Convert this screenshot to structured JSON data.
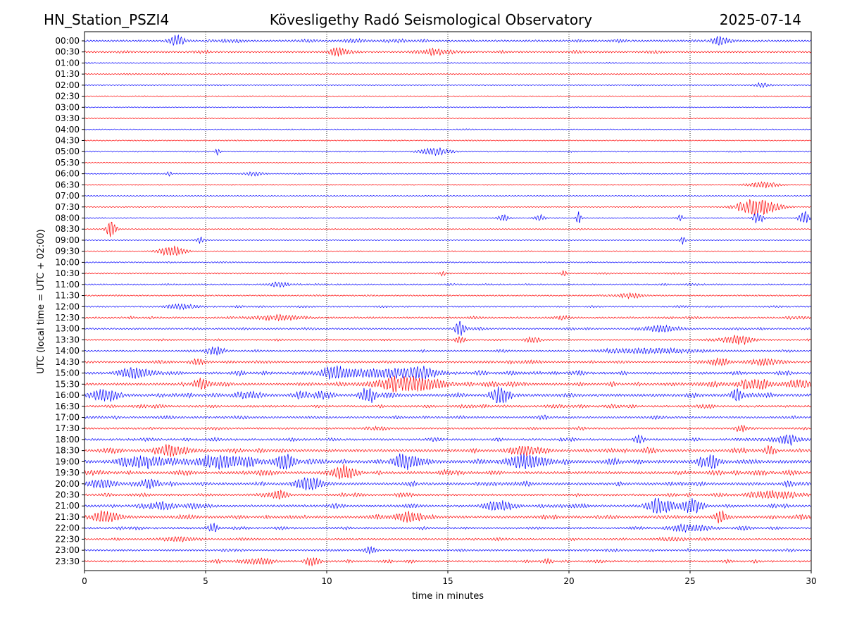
{
  "header": {
    "station": "HN_Station_PSZI4",
    "observatory": "Kövesligethy Radó Seismological Observatory",
    "date": "2025-07-14"
  },
  "chart_data": {
    "type": "line",
    "title": "Kövesligethy Radó Seismological Observatory",
    "xlabel": "time in minutes",
    "ylabel": "UTC (local time = UTC + 02:00)",
    "xlim": [
      0,
      30
    ],
    "xticks": [
      "0",
      "5",
      "10",
      "15",
      "20",
      "25",
      "30"
    ],
    "vertical_gridlines_minutes": [
      5,
      10,
      15,
      20,
      25
    ],
    "grid": "vertical dotted",
    "colors": {
      "even_row": "#0000ff",
      "odd_row": "#ff0000",
      "grid": "#000000"
    },
    "rows": [
      {
        "label": "00:00",
        "activity": 0.35,
        "events": [
          {
            "t": 3.8,
            "a": 0.9,
            "d": 0.3
          },
          {
            "t": 26.2,
            "a": 0.7,
            "d": 0.3
          }
        ]
      },
      {
        "label": "00:30",
        "activity": 0.3,
        "events": [
          {
            "t": 10.5,
            "a": 0.5,
            "d": 0.4
          },
          {
            "t": 14.5,
            "a": 0.4,
            "d": 0.8
          }
        ]
      },
      {
        "label": "01:00",
        "activity": 0.12,
        "events": []
      },
      {
        "label": "01:30",
        "activity": 0.1,
        "events": []
      },
      {
        "label": "02:00",
        "activity": 0.08,
        "events": [
          {
            "t": 28.0,
            "a": 0.4,
            "d": 0.3
          }
        ]
      },
      {
        "label": "02:30",
        "activity": 0.05,
        "events": []
      },
      {
        "label": "03:00",
        "activity": 0.05,
        "events": []
      },
      {
        "label": "03:30",
        "activity": 0.08,
        "events": []
      },
      {
        "label": "04:00",
        "activity": 0.08,
        "events": []
      },
      {
        "label": "04:30",
        "activity": 0.08,
        "events": []
      },
      {
        "label": "05:00",
        "activity": 0.1,
        "events": [
          {
            "t": 5.5,
            "a": 0.5,
            "d": 0.1
          },
          {
            "t": 14.5,
            "a": 0.6,
            "d": 0.6
          }
        ]
      },
      {
        "label": "05:30",
        "activity": 0.06,
        "events": []
      },
      {
        "label": "06:00",
        "activity": 0.08,
        "events": [
          {
            "t": 3.5,
            "a": 0.4,
            "d": 0.1
          },
          {
            "t": 7.0,
            "a": 0.3,
            "d": 0.4
          }
        ]
      },
      {
        "label": "06:30",
        "activity": 0.08,
        "events": [
          {
            "t": 28.0,
            "a": 0.5,
            "d": 0.6
          }
        ]
      },
      {
        "label": "07:00",
        "activity": 0.05,
        "events": []
      },
      {
        "label": "07:30",
        "activity": 0.08,
        "events": [
          {
            "t": 27.8,
            "a": 1.5,
            "d": 0.8
          }
        ]
      },
      {
        "label": "08:00",
        "activity": 0.08,
        "events": [
          {
            "t": 17.3,
            "a": 0.6,
            "d": 0.2
          },
          {
            "t": 18.8,
            "a": 0.5,
            "d": 0.2
          },
          {
            "t": 20.4,
            "a": 1.2,
            "d": 0.1
          },
          {
            "t": 24.6,
            "a": 0.7,
            "d": 0.1
          },
          {
            "t": 27.8,
            "a": 1.0,
            "d": 0.2
          },
          {
            "t": 29.7,
            "a": 1.2,
            "d": 0.2
          }
        ]
      },
      {
        "label": "08:30",
        "activity": 0.08,
        "events": [
          {
            "t": 1.1,
            "a": 1.5,
            "d": 0.2
          }
        ]
      },
      {
        "label": "09:00",
        "activity": 0.06,
        "events": [
          {
            "t": 4.8,
            "a": 0.5,
            "d": 0.2
          },
          {
            "t": 24.7,
            "a": 0.9,
            "d": 0.1
          }
        ]
      },
      {
        "label": "09:30",
        "activity": 0.08,
        "events": [
          {
            "t": 3.6,
            "a": 0.9,
            "d": 0.5
          }
        ]
      },
      {
        "label": "10:00",
        "activity": 0.12,
        "events": []
      },
      {
        "label": "10:30",
        "activity": 0.12,
        "events": [
          {
            "t": 14.8,
            "a": 0.5,
            "d": 0.1
          },
          {
            "t": 19.8,
            "a": 0.6,
            "d": 0.1
          }
        ]
      },
      {
        "label": "11:00",
        "activity": 0.2,
        "events": [
          {
            "t": 8.0,
            "a": 0.4,
            "d": 0.4
          }
        ]
      },
      {
        "label": "11:30",
        "activity": 0.15,
        "events": [
          {
            "t": 22.5,
            "a": 0.4,
            "d": 0.5
          }
        ]
      },
      {
        "label": "12:00",
        "activity": 0.2,
        "events": [
          {
            "t": 4.0,
            "a": 0.4,
            "d": 0.6
          }
        ]
      },
      {
        "label": "12:30",
        "activity": 0.3,
        "events": [
          {
            "t": 8.0,
            "a": 0.4,
            "d": 1.0
          }
        ]
      },
      {
        "label": "13:00",
        "activity": 0.25,
        "events": [
          {
            "t": 15.5,
            "a": 1.3,
            "d": 0.2
          },
          {
            "t": 23.8,
            "a": 0.5,
            "d": 0.8
          }
        ]
      },
      {
        "label": "13:30",
        "activity": 0.2,
        "events": [
          {
            "t": 15.5,
            "a": 0.6,
            "d": 0.2
          },
          {
            "t": 18.5,
            "a": 0.5,
            "d": 0.3
          },
          {
            "t": 27.0,
            "a": 0.8,
            "d": 0.6
          }
        ]
      },
      {
        "label": "14:00",
        "activity": 0.25,
        "events": [
          {
            "t": 5.4,
            "a": 0.6,
            "d": 0.4
          },
          {
            "t": 23.5,
            "a": 0.4,
            "d": 2.0
          }
        ]
      },
      {
        "label": "14:30",
        "activity": 0.35,
        "events": [
          {
            "t": 4.7,
            "a": 0.5,
            "d": 0.3
          },
          {
            "t": 26.2,
            "a": 0.6,
            "d": 0.4
          },
          {
            "t": 28.0,
            "a": 0.5,
            "d": 0.6
          }
        ]
      },
      {
        "label": "15:00",
        "activity": 0.5,
        "events": [
          {
            "t": 2.0,
            "a": 0.8,
            "d": 0.6
          },
          {
            "t": 10.3,
            "a": 1.2,
            "d": 0.4
          },
          {
            "t": 12.0,
            "a": 0.6,
            "d": 2.0
          },
          {
            "t": 14.0,
            "a": 0.8,
            "d": 0.6
          }
        ]
      },
      {
        "label": "15:30",
        "activity": 0.5,
        "events": [
          {
            "t": 4.8,
            "a": 0.9,
            "d": 0.3
          },
          {
            "t": 13.3,
            "a": 1.4,
            "d": 1.2
          },
          {
            "t": 27.5,
            "a": 0.8,
            "d": 0.6
          },
          {
            "t": 29.5,
            "a": 0.6,
            "d": 0.6
          }
        ]
      },
      {
        "label": "16:00",
        "activity": 0.6,
        "events": [
          {
            "t": 0.8,
            "a": 0.8,
            "d": 0.6
          },
          {
            "t": 11.7,
            "a": 1.4,
            "d": 0.3
          },
          {
            "t": 17.2,
            "a": 1.1,
            "d": 0.4
          },
          {
            "t": 26.9,
            "a": 1.2,
            "d": 0.2
          }
        ]
      },
      {
        "label": "16:30",
        "activity": 0.4,
        "events": []
      },
      {
        "label": "17:00",
        "activity": 0.35,
        "events": []
      },
      {
        "label": "17:30",
        "activity": 0.3,
        "events": [
          {
            "t": 27.1,
            "a": 0.5,
            "d": 0.2
          }
        ]
      },
      {
        "label": "18:00",
        "activity": 0.4,
        "events": [
          {
            "t": 22.9,
            "a": 0.6,
            "d": 0.2
          },
          {
            "t": 29.0,
            "a": 0.5,
            "d": 0.6
          }
        ]
      },
      {
        "label": "18:30",
        "activity": 0.55,
        "events": [
          {
            "t": 3.5,
            "a": 1.0,
            "d": 0.6
          },
          {
            "t": 18.3,
            "a": 0.8,
            "d": 0.4
          },
          {
            "t": 28.3,
            "a": 0.9,
            "d": 0.2
          }
        ]
      },
      {
        "label": "19:00",
        "activity": 0.7,
        "events": [
          {
            "t": 2.5,
            "a": 1.0,
            "d": 0.8
          },
          {
            "t": 6.0,
            "a": 0.8,
            "d": 1.2
          },
          {
            "t": 8.3,
            "a": 1.0,
            "d": 0.4
          },
          {
            "t": 13.2,
            "a": 1.0,
            "d": 0.4
          },
          {
            "t": 18.3,
            "a": 1.2,
            "d": 0.8
          },
          {
            "t": 25.9,
            "a": 1.0,
            "d": 0.3
          }
        ]
      },
      {
        "label": "19:30",
        "activity": 0.55,
        "events": [
          {
            "t": 10.7,
            "a": 1.1,
            "d": 0.4
          }
        ]
      },
      {
        "label": "20:00",
        "activity": 0.5,
        "events": [
          {
            "t": 0.7,
            "a": 0.7,
            "d": 0.6
          },
          {
            "t": 2.7,
            "a": 0.7,
            "d": 0.4
          },
          {
            "t": 9.3,
            "a": 1.0,
            "d": 0.6
          }
        ]
      },
      {
        "label": "20:30",
        "activity": 0.4,
        "events": [
          {
            "t": 8.1,
            "a": 0.7,
            "d": 0.3
          },
          {
            "t": 28.5,
            "a": 0.6,
            "d": 1.0
          }
        ]
      },
      {
        "label": "21:00",
        "activity": 0.5,
        "events": [
          {
            "t": 3.2,
            "a": 0.6,
            "d": 0.4
          },
          {
            "t": 17.2,
            "a": 0.7,
            "d": 0.6
          },
          {
            "t": 23.8,
            "a": 0.9,
            "d": 0.6
          },
          {
            "t": 25.1,
            "a": 1.1,
            "d": 0.4
          }
        ]
      },
      {
        "label": "21:30",
        "activity": 0.5,
        "events": [
          {
            "t": 1.0,
            "a": 0.7,
            "d": 0.6
          },
          {
            "t": 13.4,
            "a": 0.8,
            "d": 0.6
          },
          {
            "t": 26.3,
            "a": 0.8,
            "d": 0.3
          }
        ]
      },
      {
        "label": "22:00",
        "activity": 0.35,
        "events": [
          {
            "t": 5.3,
            "a": 0.7,
            "d": 0.2
          },
          {
            "t": 25.0,
            "a": 0.6,
            "d": 0.8
          }
        ]
      },
      {
        "label": "22:30",
        "activity": 0.3,
        "events": [
          {
            "t": 3.8,
            "a": 0.4,
            "d": 0.6
          }
        ]
      },
      {
        "label": "23:00",
        "activity": 0.3,
        "events": [
          {
            "t": 11.8,
            "a": 0.5,
            "d": 0.3
          }
        ]
      },
      {
        "label": "23:30",
        "activity": 0.35,
        "events": [
          {
            "t": 7.2,
            "a": 0.5,
            "d": 0.6
          },
          {
            "t": 9.4,
            "a": 0.7,
            "d": 0.3
          }
        ]
      }
    ]
  }
}
